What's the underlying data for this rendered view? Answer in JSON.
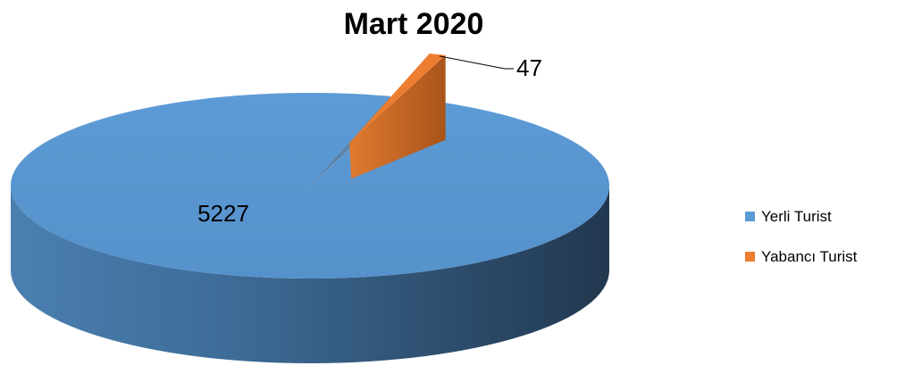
{
  "chart_data": {
    "type": "pie",
    "style": "3d-exploded",
    "title": "Mart 2020",
    "categories": [
      "Yerli Turist",
      "Yabancı Turist"
    ],
    "values": [
      5227,
      47
    ],
    "colors": [
      "#5b9bd5",
      "#ed7d31"
    ],
    "data_labels": [
      "5227",
      "47"
    ],
    "legend": {
      "position": "right",
      "entries": [
        "Yerli Turist",
        "Yabancı Turist"
      ]
    }
  }
}
